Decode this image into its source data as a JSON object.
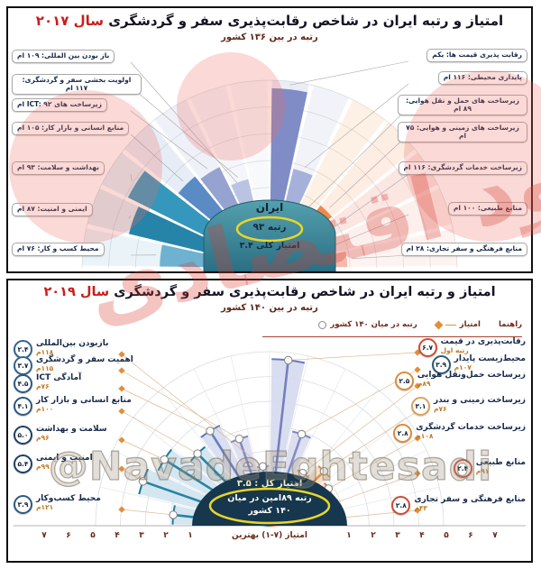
{
  "colors": {
    "year_red": "#cc1c1c",
    "subtitle_maroon": "#5f2817",
    "label_navy": "#16294a",
    "rank_orange": "#c2791f",
    "dome17_top": "#54a0ae",
    "dome17_bottom": "#2b6f84",
    "dome19": "#16374d",
    "highlight_yellow": "#e9d627",
    "watermark_red": "rgba(214,60,48,0.30)"
  },
  "watermarks": {
    "diagonal_text": "نود اقتصادی",
    "handle_text": "@NavadeEghtesadi"
  },
  "panel_2017": {
    "title_main": "امتیاز و رتبه ایران در شاخص رقابت‌پذیری سفر و گردشگری",
    "title_year": "سال ۲۰۱۷",
    "subtitle": "رتبه در بین ۱۳۶ کشور",
    "center": {
      "country": "ایران",
      "rank": "رتبه ۹۳",
      "score": "امتیاز کلی ۳.۴"
    },
    "left_labels": [
      "باز بودن بین المللی: ۱۰۹ ام",
      "اولویت بخشی سفر و گردشگری: ۱۱۷ ام",
      "زیرساخت های ICT: ۹۲ ام",
      "منابع انسانی و بازار کار: ۱۰۵ ام",
      "بهداشت و سلامت: ۹۳ ام",
      "ایمنی و امنیت: ۸۷ ام",
      "محیط کسب و کار: ۷۶ ام"
    ],
    "right_labels": [
      "رقابت پذیری قیمت ها: یکم",
      "پایداری محیطی: ۱۱۶ ام",
      "زیرساخت های حمل و نقل هوایی: ۸۹ ام",
      "زیرساخت های زمینی و هوایی: ۷۵ ام",
      "زیرساخت خدمات گردشگری: ۱۱۶ ام",
      "منابع طبیعی: ۱۰۰ ام",
      "منابع فرهنگی و سفر تجاری: ۲۸ ام"
    ]
  },
  "panel_2019": {
    "title_main": "امتیاز و رتبه ایران در شاخص رقابت‌پذیری سفر و گردشگری",
    "title_year": "سال ۲۰۱۹",
    "subtitle": "رتبه در بین ۱۴۰ کشور",
    "legend": {
      "guide": "راهنما",
      "score": "امتیاز",
      "rank": "رتبه در میان ۱۴۰ کشور"
    },
    "center": {
      "score_line": "امتیاز کل : ۳.۵",
      "rank_line1": "رتبه ۸۹امین در میان",
      "rank_line2": "۱۴۰ کشور"
    },
    "axis_label": "امتیاز (۷-۱) بهترین",
    "axis_ticks": [
      "۱",
      "۲",
      "۳",
      "۴",
      "۵",
      "۶",
      "۷"
    ],
    "left_items": [
      {
        "label": "بازبودن بین‌المللی",
        "score": "۲.۴",
        "rank": "۱۱۸م",
        "badge_color": "#33648c"
      },
      {
        "label": "اهمیت سفر و گردشگری",
        "score": "۳.۷",
        "rank": "۱۱۵م",
        "badge_color": "#33648c"
      },
      {
        "label": "آمادگی ICT",
        "score": "۴.۵",
        "rank": "۷۶م",
        "badge_color": "#2c5880"
      },
      {
        "label": "منابع انسانی و بازار کار",
        "score": "۴.۱",
        "rank": "۱۰۰م",
        "badge_color": "#2c5880"
      },
      {
        "label": "سلامت و بهداشت",
        "score": "۵.۰",
        "rank": "۹۶م",
        "badge_color": "#1d3f63"
      },
      {
        "label": "امنیت و ایمنی",
        "score": "۵.۴",
        "rank": "۹۹م",
        "badge_color": "#1d3f63"
      },
      {
        "label": "محیط کسب‌وکار",
        "score": "۳.۹",
        "rank": "۱۲۱م",
        "badge_color": "#2c5880"
      }
    ],
    "right_items": [
      {
        "label": "رقابت‌پذیری در قیمت",
        "score": "۶.۷",
        "rank": "رتبه اول",
        "badge_color": "#d04a32"
      },
      {
        "label": "محیط‌زیست پایدار",
        "score": "۳.۹",
        "rank": "۱۰۷م",
        "badge_color": "#2f5878"
      },
      {
        "label": "زیرساخت حمل‌ونقل هوایی",
        "score": "۲.۵",
        "rank": "۸۹م",
        "badge_color": "#dd8c3a"
      },
      {
        "label": "زیرساخت زمینی و بندر",
        "score": "۳.۱",
        "rank": "۷۶م",
        "badge_color": "#d8a35c"
      },
      {
        "label": "زیرساخت خدمات گردشگری",
        "score": "۲.۸",
        "rank": "۱۰۸م",
        "badge_color": "#dd8c3a"
      },
      {
        "label": "منابع طبیعی",
        "score": "۲.۴",
        "rank": "۹۱م",
        "badge_color": "#d04a32"
      },
      {
        "label": "منابع فرهنگی و سفر تجاری",
        "score": "۲.۸",
        "rank": "۴۳م",
        "badge_color": "#d04a32"
      }
    ]
  },
  "chart_data": [
    {
      "type": "bar",
      "layout": "polar-fan-semicircle",
      "title": "امتیاز و رتبه ایران در شاخص رقابت‌پذیری سفر و گردشگری سال ۲۰۱۷",
      "subtitle": "رتبه در بین ۱۳۶ کشور",
      "overall_score": 3.4,
      "country_rank": 93,
      "total_countries": 136,
      "value_range": [
        0,
        7
      ],
      "categories": [
        "محیط کسب و کار",
        "ایمنی و امنیت",
        "بهداشت و سلامت",
        "منابع انسانی و بازار کار",
        "زیرساخت های ICT",
        "اولویت بخشی سفر و گردشگری",
        "باز بودن بین المللی",
        "رقابت پذیری قیمت ها",
        "پایداری محیطی",
        "زیرساخت های حمل و نقل هوایی",
        "زیرساخت های زمینی و هوایی",
        "زیرساخت خدمات گردشگری",
        "منابع طبیعی",
        "منابع فرهنگی و سفر تجاری"
      ],
      "ranks": [
        76,
        87,
        93,
        105,
        92,
        117,
        109,
        1,
        116,
        89,
        75,
        116,
        100,
        28
      ],
      "scores_est": [
        4.1,
        5.4,
        5.9,
        4.4,
        4.2,
        3.4,
        1.9,
        6.7,
        3.8,
        2.4,
        3.0,
        2.6,
        2.4,
        2.9
      ],
      "colors": [
        "#6aaed0",
        "#2180a6",
        "#2f94ba",
        "#5587c2",
        "#93a0cf",
        "#b9c1e2",
        "#cfd4ec",
        "#7c88c4",
        "#a3aed8",
        "#f2a24f",
        "#ef8445",
        "#e65a3a",
        "#f09180",
        "#f4b5a9"
      ]
    },
    {
      "type": "bar",
      "layout": "polar-fan-semicircle",
      "title": "امتیاز و رتبه ایران در شاخص رقابت‌پذیری سفر و گردشگری سال ۲۰۱۹",
      "subtitle": "رتبه در بین ۱۴۰ کشور",
      "overall_score": 3.5,
      "country_rank": 89,
      "total_countries": 140,
      "value_range": [
        0,
        7
      ],
      "axis_label": "امتیاز (۷-۱) بهترین",
      "legend": [
        "امتیاز",
        "رتبه در میان ۱۴۰ کشور"
      ],
      "categories": [
        "محیط کسب‌وکار",
        "امنیت و ایمنی",
        "سلامت و بهداشت",
        "منابع انسانی و بازار کار",
        "آمادگی ICT",
        "اهمیت سفر و گردشگری",
        "بازبودن بین‌المللی",
        "رقابت‌پذیری در قیمت",
        "محیط‌زیست پایدار",
        "زیرساخت حمل‌ونقل هوایی",
        "زیرساخت زمینی و بندر",
        "زیرساخت خدمات گردشگری",
        "منابع طبیعی",
        "منابع فرهنگی و سفر تجاری"
      ],
      "scores": [
        3.9,
        5.4,
        5.0,
        4.1,
        4.5,
        3.7,
        2.4,
        6.7,
        3.9,
        2.5,
        3.1,
        2.8,
        2.4,
        2.8
      ],
      "ranks": [
        121,
        99,
        96,
        100,
        76,
        115,
        118,
        1,
        107,
        89,
        76,
        108,
        91,
        43
      ],
      "fill_colors": [
        "#cfe3ee",
        "#cfe3ee",
        "#cfe3ee",
        "#cfe3ee",
        "#d6dcf0",
        "#d9dcef",
        "#dcdef1",
        "#d5d9ee",
        "#d9dcef",
        "#f8e2c6",
        "#f8dcc0",
        "#f8d3bf",
        "#f8cfc7",
        "#f8cfc7"
      ],
      "line_colors": [
        "#1b7a9e",
        "#1b7a9e",
        "#1b7a9e",
        "#1b7a9e",
        "#5b79b8",
        "#7b86c2",
        "#8b93c8",
        "#6b78bb",
        "#7b86c2",
        "#da8c3a",
        "#d98c3a",
        "#e0703f",
        "#d95540",
        "#d95540"
      ]
    }
  ]
}
